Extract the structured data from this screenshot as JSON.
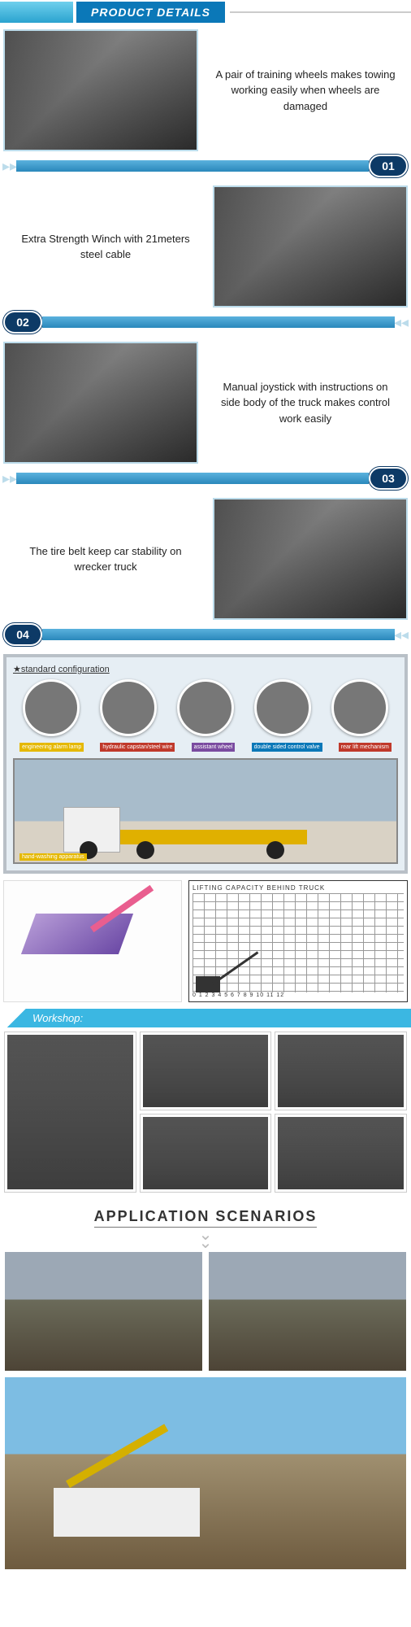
{
  "header": {
    "title": "PRODUCT DETAILS"
  },
  "features": [
    {
      "num": "01",
      "text": "A pair of training wheels makes towing working easily when wheels are damaged",
      "img_side": "left"
    },
    {
      "num": "02",
      "text": "Extra Strength Winch with 21meters steel cable",
      "img_side": "right"
    },
    {
      "num": "03",
      "text": "Manual joystick with instructions on side body of the truck makes control work easily",
      "img_side": "left"
    },
    {
      "num": "04",
      "text": "The tire belt keep car stability on wrecker truck",
      "img_side": "right"
    }
  ],
  "config": {
    "title": "★standard configuration",
    "labels": {
      "l1": "engineering alarm lamp",
      "l2": "hydraulic capstan/steel wire",
      "l3": "assistant wheel",
      "l4": "double sided control valve",
      "l5": "rear lift mechanism",
      "hand": "hand-washing apparatus"
    }
  },
  "chart": {
    "title": "LIFTING CAPACITY   BEHIND TRUCK",
    "x_range": "0  1  2  3  4  5  6  7  8  9  10 11 12",
    "y_max": 14
  },
  "workshop": {
    "label": "Workshop:"
  },
  "application": {
    "title": "APPLICATION SCENARIOS"
  },
  "colors": {
    "primary_blue": "#0b78b8",
    "dark_navy": "#0d3a66",
    "cyan": "#3bb7e2",
    "border_light": "#bcdceb"
  }
}
